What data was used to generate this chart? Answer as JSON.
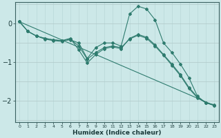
{
  "xlabel": "Humidex (Indice chaleur)",
  "bg_color": "#cce8e8",
  "line_color": "#2e7b6e",
  "grid_color_v": "#b8d8d8",
  "grid_color_h": "#b0c8c8",
  "x_ticks": [
    0,
    1,
    2,
    3,
    4,
    5,
    6,
    7,
    8,
    9,
    10,
    11,
    12,
    13,
    14,
    15,
    16,
    17,
    18,
    19,
    20,
    21,
    22,
    23
  ],
  "y_ticks": [
    -2,
    -1,
    0
  ],
  "ylim": [
    -2.55,
    0.55
  ],
  "xlim": [
    -0.5,
    23.5
  ],
  "lines": [
    {
      "x": [
        0,
        1,
        2,
        3,
        4,
        5,
        6,
        7,
        8,
        9,
        10,
        11,
        12,
        13,
        14,
        15,
        16,
        17,
        18,
        19,
        20,
        21,
        22,
        23
      ],
      "y": [
        0.05,
        -0.2,
        -0.32,
        -0.38,
        -0.42,
        -0.44,
        -0.42,
        -0.5,
        -0.9,
        -0.62,
        -0.5,
        -0.5,
        -0.58,
        0.25,
        0.45,
        0.38,
        0.1,
        -0.5,
        -0.75,
        -1.05,
        -1.4,
        -1.88,
        -2.05,
        -2.1
      ],
      "markers": true
    },
    {
      "x": [
        0,
        1,
        2,
        3,
        4,
        5,
        6,
        7,
        8,
        9,
        10,
        11,
        12,
        13,
        14,
        15,
        16,
        17,
        18,
        19,
        20,
        21,
        22,
        23
      ],
      "y": [
        0.05,
        -0.2,
        -0.32,
        -0.38,
        -0.42,
        -0.44,
        -0.38,
        -0.68,
        -1.02,
        -0.8,
        -0.65,
        -0.6,
        -0.65,
        -0.38,
        -0.28,
        -0.35,
        -0.55,
        -0.8,
        -1.05,
        -1.32,
        -1.65,
        -1.9,
        -2.05,
        -2.12
      ],
      "markers": true
    },
    {
      "x": [
        0,
        1,
        2,
        3,
        4,
        5,
        6,
        7,
        8,
        9,
        10,
        11,
        12,
        13,
        14,
        15,
        16,
        17,
        18,
        19,
        20,
        21,
        22,
        23
      ],
      "y": [
        0.05,
        -0.2,
        -0.32,
        -0.4,
        -0.44,
        -0.46,
        -0.4,
        -0.58,
        -0.92,
        -0.75,
        -0.62,
        -0.58,
        -0.62,
        -0.4,
        -0.3,
        -0.38,
        -0.58,
        -0.82,
        -1.08,
        -1.35,
        -1.68,
        -1.92,
        -2.05,
        -2.12
      ],
      "markers": true
    },
    {
      "x": [
        0,
        23
      ],
      "y": [
        0.05,
        -2.12
      ],
      "markers": false
    }
  ]
}
